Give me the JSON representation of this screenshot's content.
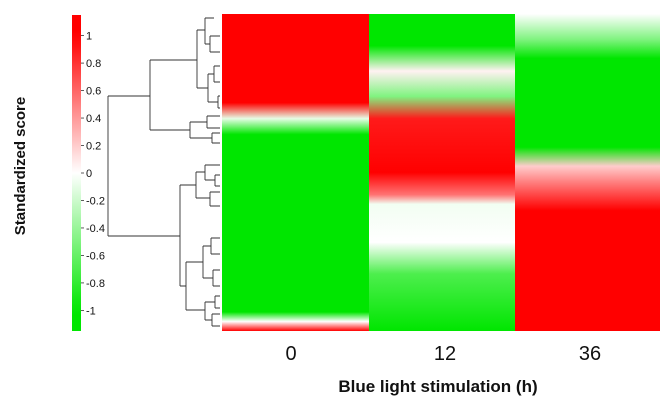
{
  "chart_data": {
    "type": "heatmap",
    "ylabel": "Standardized score",
    "xlabel": "Blue light stimulation (h)",
    "columns": [
      "0",
      "12",
      "36"
    ],
    "colorbar": {
      "ticks": [
        "1",
        "0.8",
        "0.6",
        "0.4",
        "0.2",
        "0",
        "-0.2",
        "-0.4",
        "-0.6",
        "-0.8",
        "-1"
      ],
      "range": [
        -1.15,
        1.15
      ],
      "low_color": "#00e600",
      "mid_color": "#ffffff",
      "high_color": "#ff0000"
    },
    "profiles": [
      {
        "column": "0",
        "stops": [
          [
            0.0,
            1.0
          ],
          [
            0.28,
            1.0
          ],
          [
            0.33,
            -0.1
          ],
          [
            0.38,
            -1.0
          ],
          [
            0.94,
            -1.0
          ],
          [
            0.97,
            0.0
          ],
          [
            1.0,
            1.0
          ]
        ]
      },
      {
        "column": "12",
        "stops": [
          [
            0.0,
            -1.0
          ],
          [
            0.1,
            -1.0
          ],
          [
            0.18,
            0.05
          ],
          [
            0.26,
            -0.5
          ],
          [
            0.33,
            0.9
          ],
          [
            0.5,
            1.0
          ],
          [
            0.57,
            0.55
          ],
          [
            0.6,
            -0.05
          ],
          [
            0.72,
            0.0
          ],
          [
            0.82,
            -0.7
          ],
          [
            1.0,
            -1.0
          ]
        ]
      },
      {
        "column": "36",
        "stops": [
          [
            0.0,
            0.0
          ],
          [
            0.08,
            -0.5
          ],
          [
            0.14,
            -1.0
          ],
          [
            0.42,
            -1.0
          ],
          [
            0.48,
            0.2
          ],
          [
            0.53,
            0.5
          ],
          [
            0.62,
            1.0
          ],
          [
            1.0,
            1.0
          ]
        ]
      }
    ]
  }
}
